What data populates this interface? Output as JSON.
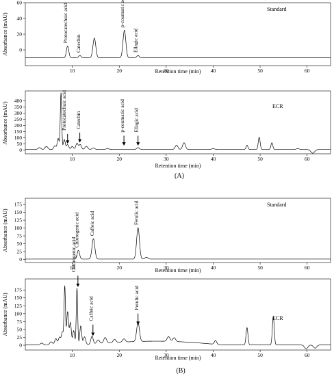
{
  "chart_data": [
    {
      "panel": "A",
      "sample_label": "Standard",
      "type": "line",
      "xlabel": "Retention time (min)",
      "ylabel": "Absorbance (mAU)",
      "xlim": [
        0,
        65
      ],
      "ylim": [
        -20,
        60
      ],
      "yticks": [
        0,
        20,
        40,
        60
      ],
      "xticks": [
        10,
        20,
        30,
        40,
        50,
        60
      ],
      "baseline": -10,
      "peaks": [
        {
          "t": 9.0,
          "h": 15,
          "w": 0.25
        },
        {
          "t": 11.6,
          "h": 3,
          "w": 0.25
        },
        {
          "t": 14.7,
          "h": 25,
          "w": 0.3
        },
        {
          "t": 21.1,
          "h": 35,
          "w": 0.3
        },
        {
          "t": 24.0,
          "h": 3,
          "w": 0.25
        }
      ],
      "annotations": [
        {
          "label": "Protocatechuic acid",
          "t": 8.5
        },
        {
          "label": "Catechin",
          "t": 11.3
        },
        {
          "label": "p-coumaric acid",
          "t": 20.6
        },
        {
          "label": "Ellagic acid",
          "t": 23.5
        }
      ],
      "arrows": []
    },
    {
      "panel": "A",
      "sample_label": "ECR",
      "type": "line",
      "xlabel": "Retention time (min)",
      "ylabel": "Absorbance (mAU)",
      "xlim": [
        0,
        65
      ],
      "ylim": [
        -30,
        480
      ],
      "yticks": [
        0,
        50,
        100,
        150,
        200,
        250,
        300,
        350,
        400
      ],
      "xticks": [
        10,
        20,
        30,
        40,
        50,
        60
      ],
      "baseline": 5,
      "peaks": [
        {
          "t": 3.0,
          "h": 15,
          "w": 0.3
        },
        {
          "t": 4.5,
          "h": 25,
          "w": 0.3
        },
        {
          "t": 6.3,
          "h": 30,
          "w": 0.25
        },
        {
          "t": 7.0,
          "h": 90,
          "w": 0.2
        },
        {
          "t": 7.6,
          "h": 460,
          "w": 0.15
        },
        {
          "t": 8.3,
          "h": 80,
          "w": 0.2
        },
        {
          "t": 9.0,
          "h": 40,
          "w": 0.25
        },
        {
          "t": 10.0,
          "h": 25,
          "w": 0.25
        },
        {
          "t": 11.0,
          "h": 50,
          "w": 0.25
        },
        {
          "t": 11.7,
          "h": 40,
          "w": 0.25
        },
        {
          "t": 13.0,
          "h": 25,
          "w": 0.3
        },
        {
          "t": 14.5,
          "h": 12,
          "w": 0.3
        },
        {
          "t": 17.5,
          "h": 8,
          "w": 0.3
        },
        {
          "t": 24.0,
          "h": 15,
          "w": 0.3
        },
        {
          "t": 32.2,
          "h": 35,
          "w": 0.3
        },
        {
          "t": 33.8,
          "h": 55,
          "w": 0.3
        },
        {
          "t": 40.0,
          "h": 8,
          "w": 0.3
        },
        {
          "t": 47.2,
          "h": 35,
          "w": 0.2
        },
        {
          "t": 49.8,
          "h": 100,
          "w": 0.2
        },
        {
          "t": 52.5,
          "h": 55,
          "w": 0.2
        },
        {
          "t": 58.0,
          "h": 8,
          "w": 0.3
        }
      ],
      "dips": [
        {
          "t": 61.2,
          "h": -30,
          "w": 0.4
        }
      ],
      "annotations": [
        {
          "label": "Protocatechuic acid",
          "t": 8.2
        },
        {
          "label": "Catechin",
          "t": 11.3
        },
        {
          "label": "p-coumaric acid",
          "t": 20.6
        },
        {
          "label": "Ellagic acid",
          "t": 23.6
        }
      ],
      "arrows": [
        {
          "t": 9.0,
          "tip": 40
        },
        {
          "t": 11.6,
          "tip": 50
        },
        {
          "t": 21.0,
          "tip": 25
        },
        {
          "t": 24.0,
          "tip": 25
        }
      ]
    },
    {
      "panel": "B",
      "sample_label": "Standard",
      "type": "line",
      "xlabel": "Retention time (min)",
      "ylabel": "Absorbance (mAU)",
      "xlim": [
        0,
        65
      ],
      "ylim": [
        -10,
        195
      ],
      "yticks": [
        0,
        25,
        50,
        75,
        100,
        125,
        150,
        175
      ],
      "xticks": [
        10,
        20,
        30,
        40,
        50,
        60
      ],
      "baseline": 1,
      "peaks": [
        {
          "t": 11.3,
          "h": 28,
          "w": 0.25
        },
        {
          "t": 14.5,
          "h": 65,
          "w": 0.3
        },
        {
          "t": 24.0,
          "h": 100,
          "w": 0.3
        },
        {
          "t": 25.8,
          "h": 6,
          "w": 0.3
        }
      ],
      "annotations": [
        {
          "label": "Chlorogenic acid",
          "t": 10.9
        },
        {
          "label": "Caffeic acid",
          "t": 14.2
        },
        {
          "label": "Ferulic acid",
          "t": 23.6
        }
      ],
      "arrows": []
    },
    {
      "panel": "B",
      "sample_label": "ECR",
      "type": "line",
      "xlabel": "Retention time (min)",
      "ylabel": "Absorbance (mAU)",
      "xlim": [
        0,
        65
      ],
      "ylim": [
        -15,
        210
      ],
      "yticks": [
        0,
        25,
        50,
        75,
        100,
        125,
        150,
        175
      ],
      "xticks": [
        10,
        20,
        30,
        40,
        50,
        60
      ],
      "baseline": 1,
      "peaks": [
        {
          "t": 3.5,
          "h": 6,
          "w": 0.3
        },
        {
          "t": 5.5,
          "h": 10,
          "w": 0.3
        },
        {
          "t": 6.5,
          "h": 20,
          "w": 0.25
        },
        {
          "t": 7.3,
          "h": 25,
          "w": 0.25
        },
        {
          "t": 7.9,
          "h": 40,
          "w": 0.2
        },
        {
          "t": 8.4,
          "h": 185,
          "w": 0.15
        },
        {
          "t": 9.0,
          "h": 105,
          "w": 0.2
        },
        {
          "t": 9.6,
          "h": 70,
          "w": 0.2
        },
        {
          "t": 10.3,
          "h": 45,
          "w": 0.2
        },
        {
          "t": 11.0,
          "h": 180,
          "w": 0.15
        },
        {
          "t": 11.8,
          "h": 60,
          "w": 0.2
        },
        {
          "t": 12.6,
          "h": 25,
          "w": 0.25
        },
        {
          "t": 14.2,
          "h": 25,
          "w": 0.25
        },
        {
          "t": 15.5,
          "h": 12,
          "w": 0.3
        },
        {
          "t": 17.0,
          "h": 18,
          "w": 0.3
        },
        {
          "t": 19.0,
          "h": 10,
          "w": 0.3
        },
        {
          "t": 21.0,
          "h": 10,
          "w": 0.3
        },
        {
          "t": 24.0,
          "h": 60,
          "w": 0.3
        },
        {
          "t": 30.5,
          "h": 15,
          "w": 0.3
        },
        {
          "t": 31.7,
          "h": 12,
          "w": 0.3
        },
        {
          "t": 40.5,
          "h": 12,
          "w": 0.25
        },
        {
          "t": 47.2,
          "h": 55,
          "w": 0.2
        },
        {
          "t": 52.8,
          "h": 90,
          "w": 0.2
        }
      ],
      "hump": {
        "start": 12,
        "peak": 28,
        "end": 42,
        "h": 12
      },
      "dips": [
        {
          "t": 59.8,
          "h": -12,
          "w": 0.35
        },
        {
          "t": 61.7,
          "h": -10,
          "w": 0.35
        }
      ],
      "annotations": [
        {
          "label": "Chlorogenic acid",
          "t": 10.3
        },
        {
          "label": "Caffeic acid",
          "t": 14.0
        },
        {
          "label": "Ferulic acid",
          "t": 23.7
        }
      ],
      "arrows": [
        {
          "t": 11.2,
          "tip": 180
        },
        {
          "t": 14.4,
          "tip": 25
        },
        {
          "t": 24.0,
          "tip": 60
        }
      ]
    }
  ],
  "captions": [
    "(A)",
    "(B)"
  ]
}
